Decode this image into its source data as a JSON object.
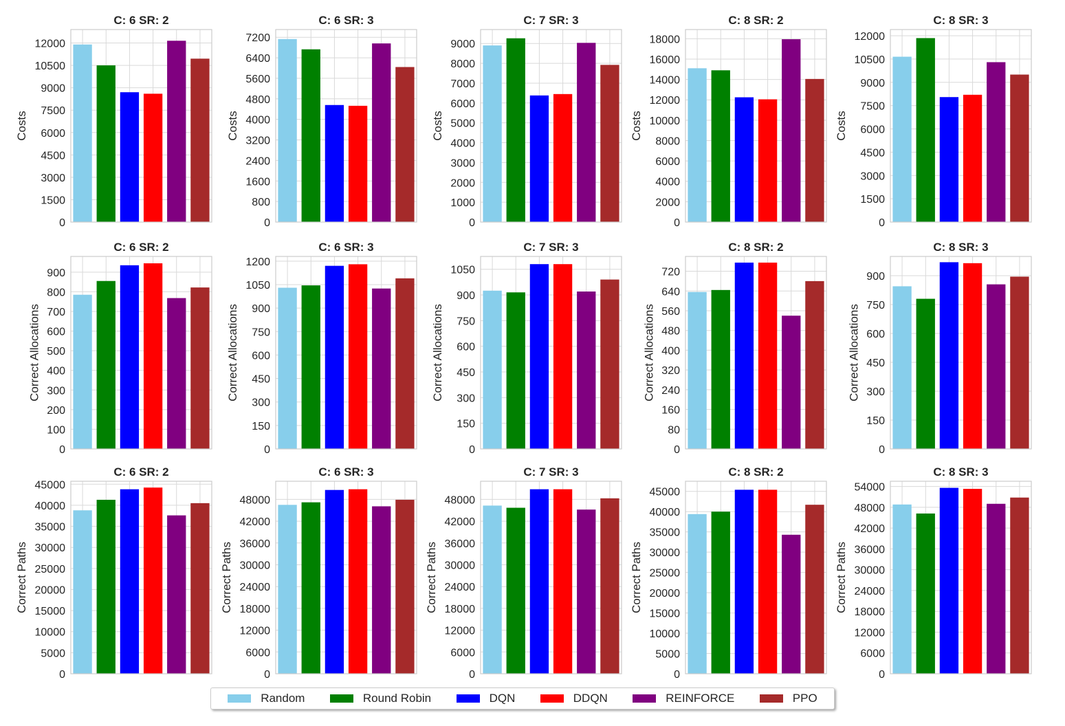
{
  "figure": {
    "legend": [
      {
        "name": "Random",
        "color": "#87CEEB"
      },
      {
        "name": "Round Robin",
        "color": "#008000"
      },
      {
        "name": "DQN",
        "color": "#0000FF"
      },
      {
        "name": "DDQN",
        "color": "#FF0000"
      },
      {
        "name": "REINFORCE",
        "color": "#800080"
      },
      {
        "name": "PPO",
        "color": "#A52A2A"
      }
    ]
  },
  "chart_data": [
    {
      "type": "bar",
      "title": "C: 6 SR: 2",
      "ylabel": "Costs",
      "ylim": [
        0,
        12900
      ],
      "yticks": [
        0,
        1500,
        3000,
        4500,
        6000,
        7500,
        9000,
        10500,
        12000
      ],
      "categories": [
        "Random",
        "Round Robin",
        "DQN",
        "DDQN",
        "REINFORCE",
        "PPO"
      ],
      "values": [
        11900,
        10500,
        8700,
        8600,
        12150,
        10950
      ]
    },
    {
      "type": "bar",
      "title": "C: 6 SR: 3",
      "ylabel": "Costs",
      "ylim": [
        0,
        7500
      ],
      "yticks": [
        0,
        800,
        1600,
        2400,
        3200,
        4000,
        4800,
        5600,
        6400,
        7200
      ],
      "categories": [
        "Random",
        "Round Robin",
        "DQN",
        "DDQN",
        "REINFORCE",
        "PPO"
      ],
      "values": [
        7130,
        6730,
        4560,
        4530,
        6960,
        6040
      ]
    },
    {
      "type": "bar",
      "title": "C: 7 SR: 3",
      "ylabel": "Costs",
      "ylim": [
        0,
        9700
      ],
      "yticks": [
        0,
        1000,
        2000,
        3000,
        4000,
        5000,
        6000,
        7000,
        8000,
        9000
      ],
      "categories": [
        "Random",
        "Round Robin",
        "DQN",
        "DDQN",
        "REINFORCE",
        "PPO"
      ],
      "values": [
        8900,
        9260,
        6380,
        6450,
        9030,
        7920
      ]
    },
    {
      "type": "bar",
      "title": "C: 8 SR: 2",
      "ylabel": "Costs",
      "ylim": [
        0,
        18900
      ],
      "yticks": [
        0,
        2000,
        4000,
        6000,
        8000,
        10000,
        12000,
        14000,
        16000,
        18000
      ],
      "categories": [
        "Random",
        "Round Robin",
        "DQN",
        "DDQN",
        "REINFORCE",
        "PPO"
      ],
      "values": [
        15100,
        14900,
        12250,
        12050,
        17950,
        14050
      ]
    },
    {
      "type": "bar",
      "title": "C: 8 SR: 3",
      "ylabel": "Costs",
      "ylim": [
        0,
        12400
      ],
      "yticks": [
        0,
        1500,
        3000,
        4500,
        6000,
        7500,
        9000,
        10500,
        12000
      ],
      "categories": [
        "Random",
        "Round Robin",
        "DQN",
        "DDQN",
        "REINFORCE",
        "PPO"
      ],
      "values": [
        10650,
        11850,
        8050,
        8200,
        10300,
        9500
      ]
    },
    {
      "type": "bar",
      "title": "C: 6 SR: 2",
      "ylabel": "Correct Allocations",
      "ylim": [
        0,
        980
      ],
      "yticks": [
        0,
        100,
        200,
        300,
        400,
        500,
        600,
        700,
        800,
        900
      ],
      "categories": [
        "Random",
        "Round Robin",
        "DQN",
        "DDQN",
        "REINFORCE",
        "PPO"
      ],
      "values": [
        785,
        855,
        935,
        945,
        768,
        822
      ]
    },
    {
      "type": "bar",
      "title": "C: 6 SR: 3",
      "ylabel": "Correct Allocations",
      "ylim": [
        0,
        1230
      ],
      "yticks": [
        0,
        150,
        300,
        450,
        600,
        750,
        900,
        1050,
        1200
      ],
      "categories": [
        "Random",
        "Round Robin",
        "DQN",
        "DDQN",
        "REINFORCE",
        "PPO"
      ],
      "values": [
        1030,
        1045,
        1170,
        1180,
        1025,
        1090
      ]
    },
    {
      "type": "bar",
      "title": "C: 7 SR: 3",
      "ylabel": "Correct Allocations",
      "ylim": [
        0,
        1125
      ],
      "yticks": [
        0,
        150,
        300,
        450,
        600,
        750,
        900,
        1050
      ],
      "categories": [
        "Random",
        "Round Robin",
        "DQN",
        "DDQN",
        "REINFORCE",
        "PPO"
      ],
      "values": [
        925,
        915,
        1080,
        1080,
        920,
        990
      ]
    },
    {
      "type": "bar",
      "title": "C: 8 SR: 2",
      "ylabel": "Correct Allocations",
      "ylim": [
        0,
        780
      ],
      "yticks": [
        0,
        80,
        160,
        240,
        320,
        400,
        480,
        560,
        640,
        720
      ],
      "categories": [
        "Random",
        "Round Robin",
        "DQN",
        "DDQN",
        "REINFORCE",
        "PPO"
      ],
      "values": [
        636,
        644,
        755,
        755,
        540,
        680
      ]
    },
    {
      "type": "bar",
      "title": "C: 8 SR: 3",
      "ylabel": "Correct Allocations",
      "ylim": [
        0,
        1000
      ],
      "yticks": [
        0,
        150,
        300,
        450,
        600,
        750,
        900
      ],
      "categories": [
        "Random",
        "Round Robin",
        "DQN",
        "DDQN",
        "REINFORCE",
        "PPO"
      ],
      "values": [
        845,
        780,
        970,
        965,
        855,
        895
      ]
    },
    {
      "type": "bar",
      "title": "C: 6 SR: 2",
      "ylabel": "Correct Paths",
      "ylim": [
        0,
        45700
      ],
      "yticks": [
        0,
        5000,
        10000,
        15000,
        20000,
        25000,
        30000,
        35000,
        40000,
        45000
      ],
      "categories": [
        "Random",
        "Round Robin",
        "DQN",
        "DDQN",
        "REINFORCE",
        "PPO"
      ],
      "values": [
        38800,
        41300,
        43800,
        44200,
        37600,
        40500
      ]
    },
    {
      "type": "bar",
      "title": "C: 6 SR: 3",
      "ylabel": "Correct Paths",
      "ylim": [
        0,
        53000
      ],
      "yticks": [
        0,
        6000,
        12000,
        18000,
        24000,
        30000,
        36000,
        42000,
        48000
      ],
      "categories": [
        "Random",
        "Round Robin",
        "DQN",
        "DDQN",
        "REINFORCE",
        "PPO"
      ],
      "values": [
        46500,
        47200,
        50600,
        50800,
        46100,
        47900
      ]
    },
    {
      "type": "bar",
      "title": "C: 7 SR: 3",
      "ylabel": "Correct Paths",
      "ylim": [
        0,
        53000
      ],
      "yticks": [
        0,
        6000,
        12000,
        18000,
        24000,
        30000,
        36000,
        42000,
        48000
      ],
      "categories": [
        "Random",
        "Round Robin",
        "DQN",
        "DDQN",
        "REINFORCE",
        "PPO"
      ],
      "values": [
        46300,
        45700,
        50800,
        50800,
        45200,
        48300
      ]
    },
    {
      "type": "bar",
      "title": "C: 8 SR: 2",
      "ylabel": "Correct Paths",
      "ylim": [
        0,
        47500
      ],
      "yticks": [
        0,
        5000,
        10000,
        15000,
        20000,
        25000,
        30000,
        35000,
        40000,
        45000
      ],
      "categories": [
        "Random",
        "Round Robin",
        "DQN",
        "DDQN",
        "REINFORCE",
        "PPO"
      ],
      "values": [
        39400,
        40000,
        45400,
        45400,
        34300,
        41700
      ]
    },
    {
      "type": "bar",
      "title": "C: 8 SR: 3",
      "ylabel": "Correct Paths",
      "ylim": [
        0,
        55500
      ],
      "yticks": [
        0,
        6000,
        12000,
        18000,
        24000,
        30000,
        36000,
        42000,
        48000,
        54000
      ],
      "categories": [
        "Random",
        "Round Robin",
        "DQN",
        "DDQN",
        "REINFORCE",
        "PPO"
      ],
      "values": [
        48800,
        46200,
        53600,
        53300,
        49000,
        50800
      ]
    }
  ]
}
